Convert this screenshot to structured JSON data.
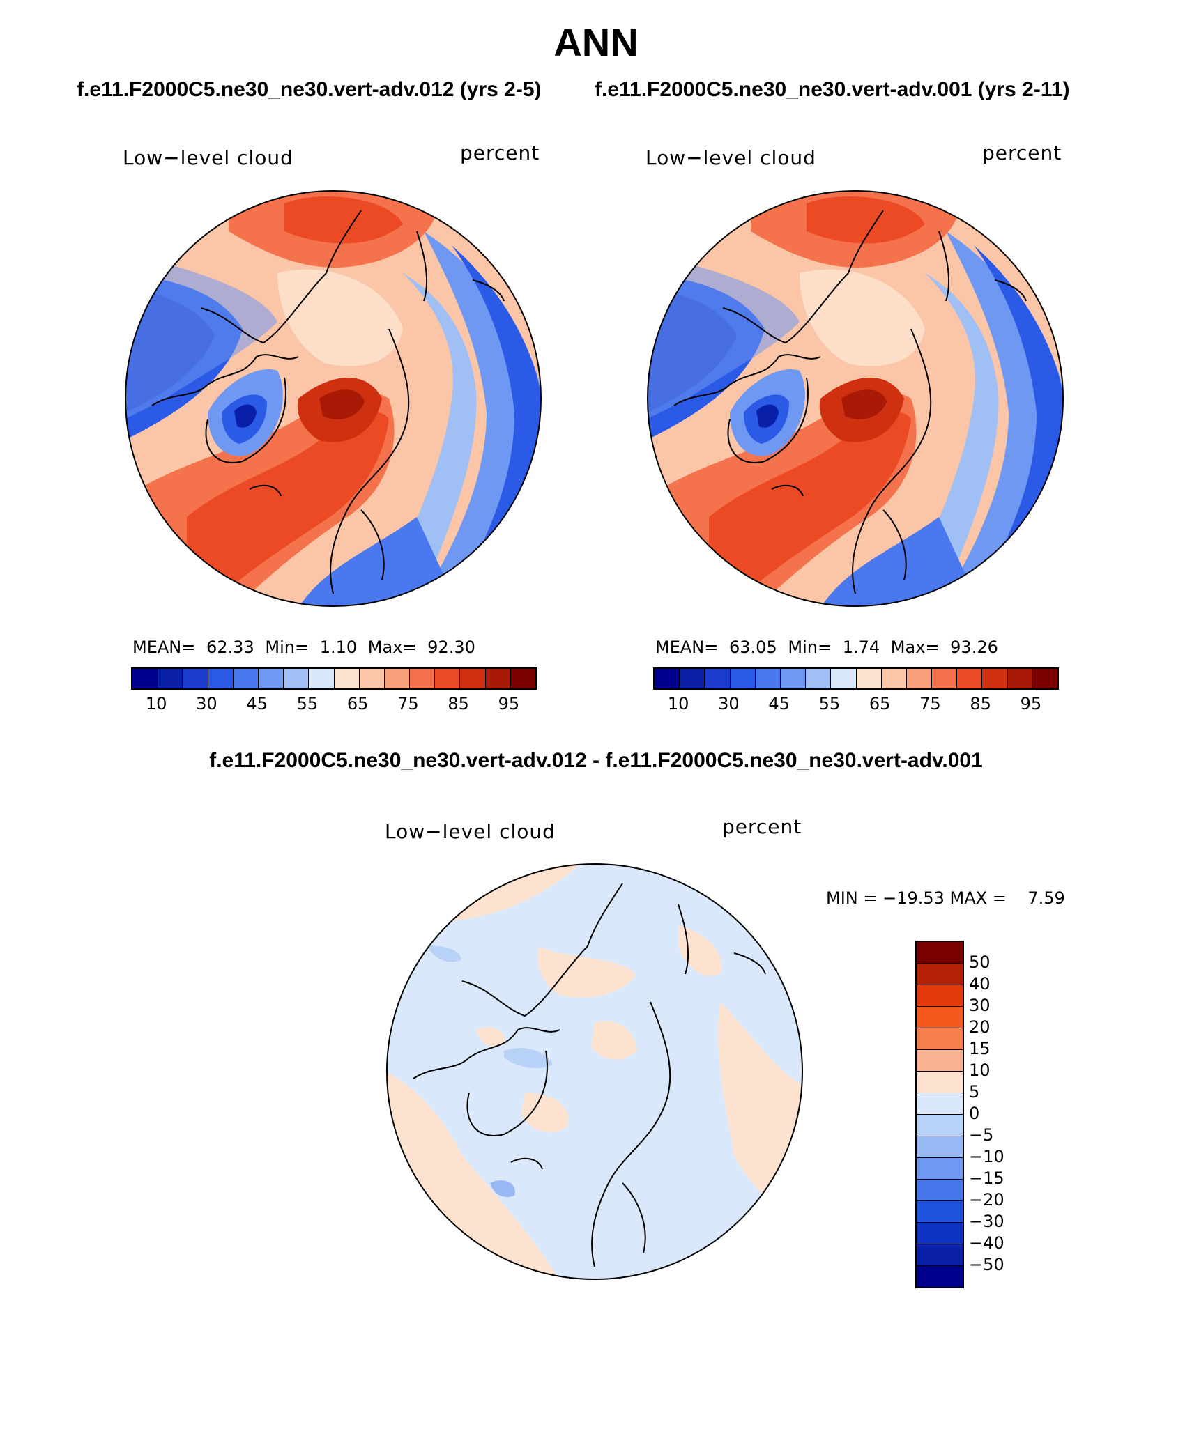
{
  "title": "ANN",
  "left_panel": {
    "case": "f.e11.F2000C5.ne30_ne30.vert-adv.012 (yrs 2-5)",
    "variable": "Low−level cloud",
    "units": "percent",
    "mean_label": "MEAN=",
    "mean": "62.33",
    "min_label": "Min=",
    "min": "1.10",
    "max_label": "Max=",
    "max": "92.30"
  },
  "right_panel": {
    "case": "f.e11.F2000C5.ne30_ne30.vert-adv.001 (yrs 2-11)",
    "variable": "Low−level cloud",
    "units": "percent",
    "mean_label": "MEAN=",
    "mean": "63.05",
    "min_label": "Min=",
    "min": "1.74",
    "max_label": "Max=",
    "max": "93.26"
  },
  "diff_panel": {
    "title": "f.e11.F2000C5.ne30_ne30.vert-adv.012 - f.e11.F2000C5.ne30_ne30.vert-adv.001",
    "variable": "Low−level cloud",
    "units": "percent",
    "minmax": "MIN = −19.53 MAX =    7.59"
  },
  "abs_colorbar": {
    "colors": [
      "#00008c",
      "#0a1fa8",
      "#1a3dd0",
      "#2a5ae6",
      "#4a78ee",
      "#6f98f2",
      "#a0bff5",
      "#d7e8fb",
      "#fde3cf",
      "#fbc5a8",
      "#f89f7a",
      "#f4734d",
      "#ec4a24",
      "#cf3010",
      "#a81a06",
      "#7a0000"
    ],
    "labels": [
      "10",
      "30",
      "45",
      "55",
      "65",
      "75",
      "85",
      "95"
    ]
  },
  "diff_colorbar": {
    "colors": [
      "#7a0000",
      "#b52205",
      "#e23a0d",
      "#f4591e",
      "#f77f4e",
      "#fbb293",
      "#fde3cf",
      "#d9e9fb",
      "#b8d1f7",
      "#98b8f3",
      "#6f98f0",
      "#4577ea",
      "#2052e0",
      "#0f34c4",
      "#0a1fa8",
      "#00008c"
    ],
    "labels": [
      "50",
      "40",
      "30",
      "20",
      "15",
      "10",
      "5",
      "0",
      "−5",
      "−10",
      "−15",
      "−20",
      "−30",
      "−40",
      "−50"
    ]
  }
}
